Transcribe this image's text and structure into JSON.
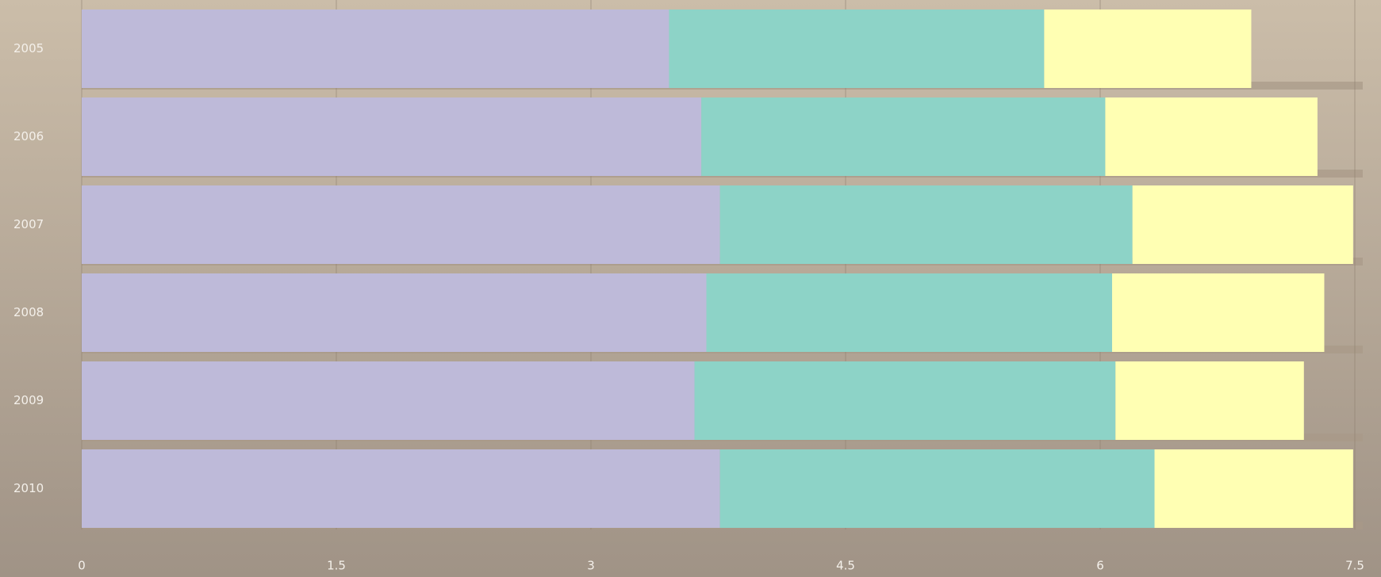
{
  "chart_data": {
    "type": "stacked-barh",
    "categories": [
      "2005",
      "2006",
      "2007",
      "2008",
      "2009",
      "2010"
    ],
    "series": [
      {
        "color": "#bebad9",
        "values": [
          3.46,
          3.65,
          3.76,
          3.68,
          3.61,
          3.76
        ]
      },
      {
        "color": "#8dd3c7",
        "values": [
          2.21,
          2.38,
          2.43,
          2.39,
          2.48,
          2.56
        ]
      },
      {
        "color": "#ffffb3",
        "values": [
          1.22,
          1.25,
          1.3,
          1.25,
          1.11,
          1.17
        ]
      }
    ],
    "xlim": [
      0,
      7.5
    ],
    "xticks": [
      0,
      1.5,
      3,
      4.5,
      6,
      7.5
    ],
    "grid": true
  }
}
